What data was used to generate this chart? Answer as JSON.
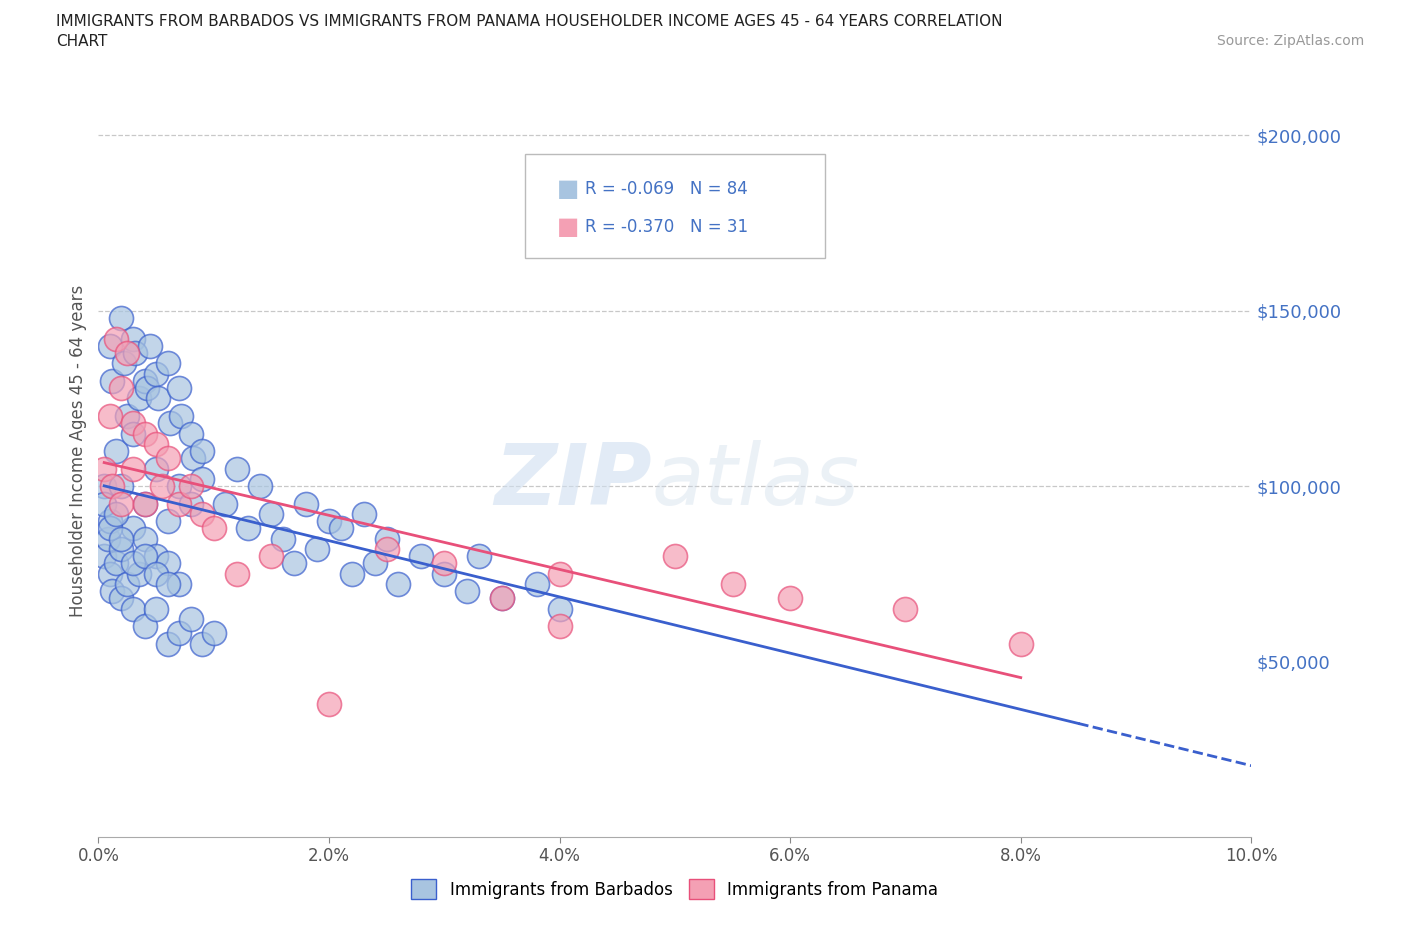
{
  "title_line1": "IMMIGRANTS FROM BARBADOS VS IMMIGRANTS FROM PANAMA HOUSEHOLDER INCOME AGES 45 - 64 YEARS CORRELATION",
  "title_line2": "CHART",
  "source_text": "Source: ZipAtlas.com",
  "ylabel": "Householder Income Ages 45 - 64 years",
  "xlim": [
    0.0,
    0.1
  ],
  "ylim": [
    0,
    220000
  ],
  "xticks": [
    0.0,
    0.02,
    0.04,
    0.06,
    0.08,
    0.1
  ],
  "xtick_labels": [
    "0.0%",
    "2.0%",
    "4.0%",
    "6.0%",
    "8.0%",
    "10.0%"
  ],
  "ytick_positions": [
    50000,
    100000,
    150000,
    200000
  ],
  "ytick_labels": [
    "$50,000",
    "$100,000",
    "$150,000",
    "$200,000"
  ],
  "barbados_color": "#a8c4e0",
  "panama_color": "#f4a0b4",
  "barbados_line_color": "#3a5fcd",
  "panama_line_color": "#e8507a",
  "barbados_R": -0.069,
  "barbados_N": 84,
  "panama_R": -0.37,
  "panama_N": 31,
  "legend_label_barbados": "Immigrants from Barbados",
  "legend_label_panama": "Immigrants from Panama",
  "watermark": "ZIPatlas",
  "background_color": "#ffffff",
  "grid_color": "#c8c8c8",
  "dashed_line_y": [
    100000,
    150000,
    200000
  ],
  "text_color_blue": "#4472c4",
  "barbados_x": [
    0.0005,
    0.001,
    0.0012,
    0.0015,
    0.002,
    0.002,
    0.0022,
    0.0025,
    0.003,
    0.003,
    0.0032,
    0.0035,
    0.004,
    0.004,
    0.0042,
    0.0045,
    0.005,
    0.005,
    0.0052,
    0.006,
    0.006,
    0.0062,
    0.007,
    0.007,
    0.0072,
    0.008,
    0.008,
    0.0082,
    0.009,
    0.009,
    0.0005,
    0.0008,
    0.001,
    0.001,
    0.0012,
    0.0015,
    0.002,
    0.002,
    0.0025,
    0.003,
    0.003,
    0.0035,
    0.004,
    0.004,
    0.005,
    0.005,
    0.006,
    0.006,
    0.007,
    0.007,
    0.008,
    0.009,
    0.01,
    0.011,
    0.012,
    0.013,
    0.014,
    0.015,
    0.016,
    0.017,
    0.018,
    0.019,
    0.02,
    0.021,
    0.022,
    0.023,
    0.024,
    0.025,
    0.026,
    0.028,
    0.03,
    0.032,
    0.033,
    0.035,
    0.038,
    0.04,
    0.0005,
    0.001,
    0.0015,
    0.002,
    0.003,
    0.004,
    0.005,
    0.006
  ],
  "barbados_y": [
    100000,
    140000,
    130000,
    110000,
    148000,
    100000,
    135000,
    120000,
    142000,
    115000,
    138000,
    125000,
    130000,
    95000,
    128000,
    140000,
    132000,
    105000,
    125000,
    135000,
    90000,
    118000,
    128000,
    100000,
    120000,
    115000,
    95000,
    108000,
    110000,
    102000,
    80000,
    85000,
    75000,
    90000,
    70000,
    78000,
    68000,
    82000,
    72000,
    65000,
    88000,
    75000,
    85000,
    60000,
    80000,
    65000,
    78000,
    55000,
    72000,
    58000,
    62000,
    55000,
    58000,
    95000,
    105000,
    88000,
    100000,
    92000,
    85000,
    78000,
    95000,
    82000,
    90000,
    88000,
    75000,
    92000,
    78000,
    85000,
    72000,
    80000,
    75000,
    70000,
    80000,
    68000,
    72000,
    65000,
    95000,
    88000,
    92000,
    85000,
    78000,
    80000,
    75000,
    72000
  ],
  "panama_x": [
    0.0005,
    0.001,
    0.0012,
    0.0015,
    0.002,
    0.002,
    0.0025,
    0.003,
    0.003,
    0.004,
    0.004,
    0.005,
    0.0055,
    0.006,
    0.007,
    0.008,
    0.009,
    0.01,
    0.012,
    0.015,
    0.02,
    0.025,
    0.03,
    0.035,
    0.04,
    0.05,
    0.055,
    0.06,
    0.07,
    0.08,
    0.04
  ],
  "panama_y": [
    105000,
    120000,
    100000,
    142000,
    128000,
    95000,
    138000,
    118000,
    105000,
    115000,
    95000,
    112000,
    100000,
    108000,
    95000,
    100000,
    92000,
    88000,
    75000,
    80000,
    38000,
    82000,
    78000,
    68000,
    75000,
    80000,
    72000,
    68000,
    65000,
    55000,
    60000
  ]
}
